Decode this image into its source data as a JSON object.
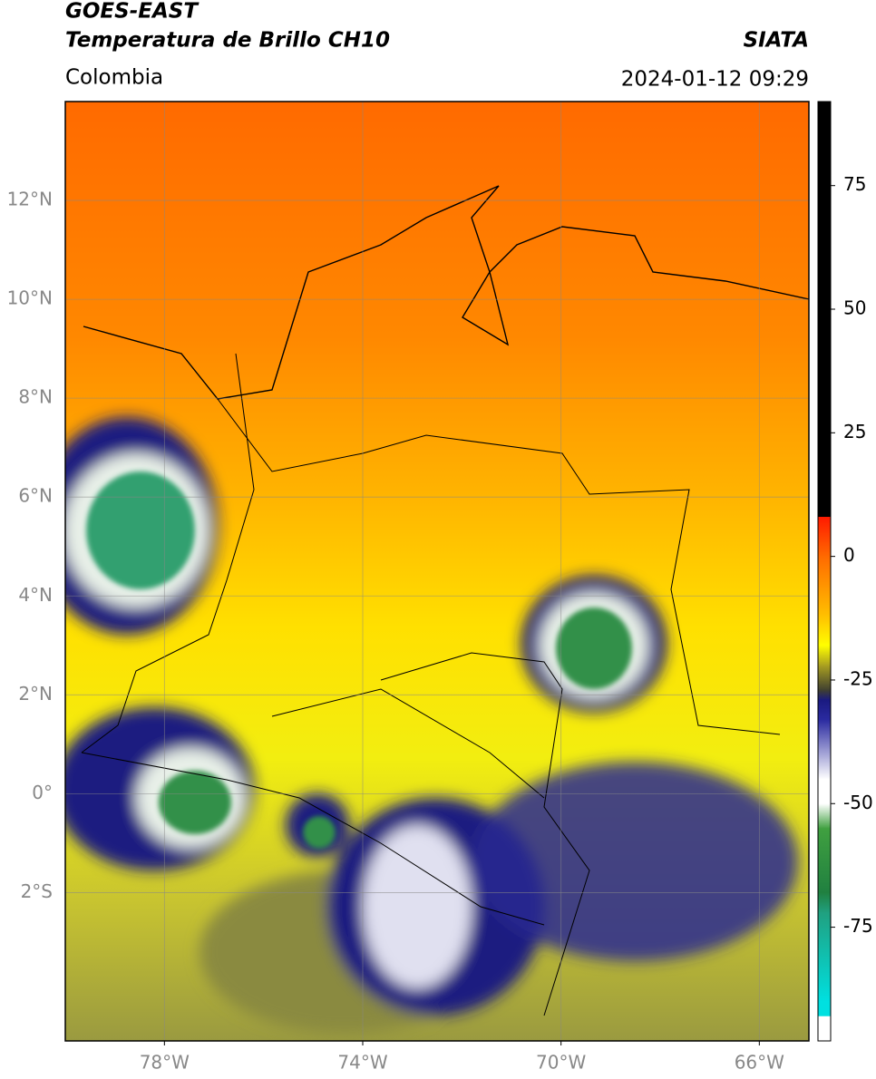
{
  "header": {
    "satellite": "GOES-EAST",
    "product": "Temperatura de Brillo CH10",
    "region": "Colombia",
    "source": "SIATA",
    "datetime": "2024-01-12 09:29"
  },
  "map": {
    "lonlim": [
      -80,
      -65
    ],
    "latlim": [
      -5,
      14
    ],
    "lonticks": [
      {
        "value": -78,
        "label": "78°W"
      },
      {
        "value": -74,
        "label": "74°W"
      },
      {
        "value": -70,
        "label": "70°W"
      },
      {
        "value": -66,
        "label": "66°W"
      }
    ],
    "latticks": [
      {
        "value": 12,
        "label": "12°N"
      },
      {
        "value": 10,
        "label": "10°N"
      },
      {
        "value": 8,
        "label": "8°N"
      },
      {
        "value": 6,
        "label": "6°N"
      },
      {
        "value": 4,
        "label": "4°N"
      },
      {
        "value": 2,
        "label": "2°N"
      },
      {
        "value": 0,
        "label": "0°"
      },
      {
        "value": -2,
        "label": "2°S"
      }
    ],
    "grid": true
  },
  "colorbar": {
    "clim": [
      -98,
      92
    ],
    "ticks": [
      75,
      50,
      25,
      0,
      -25,
      -50,
      -75
    ],
    "colormap": [
      {
        "value": 92,
        "color": "#000000"
      },
      {
        "value": 8,
        "color": "#000000"
      },
      {
        "value": 8,
        "color": "#ff1a00"
      },
      {
        "value": 0,
        "color": "#ff6a00"
      },
      {
        "value": -12,
        "color": "#ffc000"
      },
      {
        "value": -18,
        "color": "#ffff00"
      },
      {
        "value": -22,
        "color": "#aaa020"
      },
      {
        "value": -27,
        "color": "#404030"
      },
      {
        "value": -29,
        "color": "#1a1a80"
      },
      {
        "value": -33,
        "color": "#2a2aa0"
      },
      {
        "value": -45,
        "color": "#ffffff"
      },
      {
        "value": -50,
        "color": "#ffffff"
      },
      {
        "value": -55,
        "color": "#40a040"
      },
      {
        "value": -68,
        "color": "#208040"
      },
      {
        "value": -72,
        "color": "#20a080"
      },
      {
        "value": -90,
        "color": "#00e0e0"
      },
      {
        "value": -93,
        "color": "#00e0e0"
      },
      {
        "value": -93,
        "color": "#ffffff"
      },
      {
        "value": -98,
        "color": "#ffffff"
      }
    ]
  }
}
